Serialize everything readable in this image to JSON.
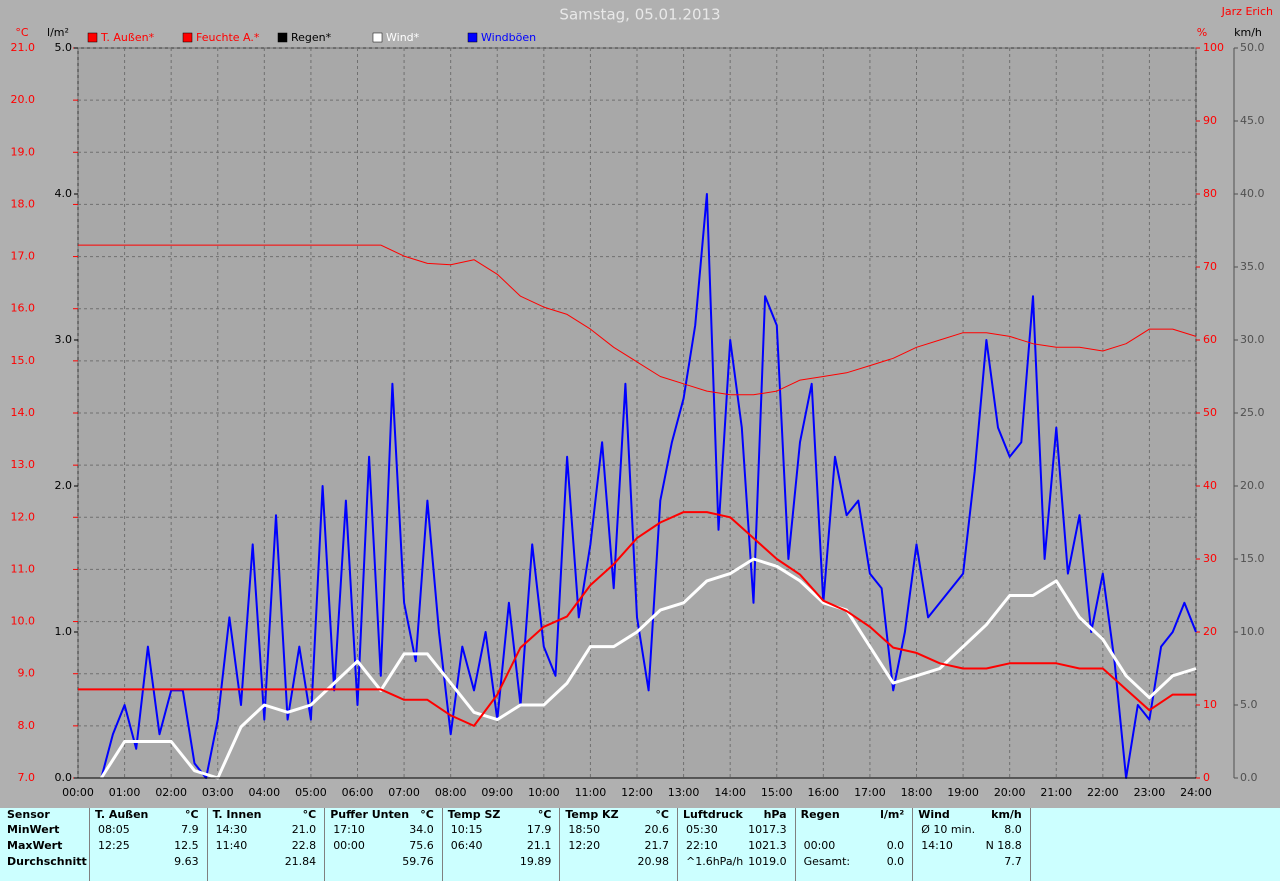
{
  "chart_data": {
    "type": "line",
    "title": "Samstag, 05.01.2013",
    "author": "Jarz Erich",
    "x": [
      0,
      0.5,
      1,
      1.5,
      2,
      2.5,
      3,
      3.5,
      4,
      4.5,
      5,
      5.5,
      6,
      6.5,
      7,
      7.5,
      8,
      8.5,
      9,
      9.5,
      10,
      10.5,
      11,
      11.5,
      12,
      12.5,
      13,
      13.5,
      14,
      14.5,
      15,
      15.5,
      16,
      16.5,
      17,
      17.5,
      18,
      18.5,
      19,
      19.5,
      20,
      20.5,
      21,
      21.5,
      22,
      22.5,
      23,
      23.5,
      24
    ],
    "xlim": [
      0,
      24
    ],
    "xticks": [
      {
        "value": 0,
        "label": "00:00"
      },
      {
        "value": 1,
        "label": "01:00"
      },
      {
        "value": 2,
        "label": "02:00"
      },
      {
        "value": 3,
        "label": "03:00"
      },
      {
        "value": 4,
        "label": "04:00"
      },
      {
        "value": 5,
        "label": "05:00"
      },
      {
        "value": 6,
        "label": "06:00"
      },
      {
        "value": 7,
        "label": "07:00"
      },
      {
        "value": 8,
        "label": "08:00"
      },
      {
        "value": 9,
        "label": "09:00"
      },
      {
        "value": 10,
        "label": "10:00"
      },
      {
        "value": 11,
        "label": "11:00"
      },
      {
        "value": 12,
        "label": "12:00"
      },
      {
        "value": 13,
        "label": "13:00"
      },
      {
        "value": 14,
        "label": "14:00"
      },
      {
        "value": 15,
        "label": "15:00"
      },
      {
        "value": 16,
        "label": "16:00"
      },
      {
        "value": 17,
        "label": "17:00"
      },
      {
        "value": 18,
        "label": "18:00"
      },
      {
        "value": 19,
        "label": "19:00"
      },
      {
        "value": 20,
        "label": "20:00"
      },
      {
        "value": 21,
        "label": "21:00"
      },
      {
        "value": 22,
        "label": "22:00"
      },
      {
        "value": 23,
        "label": "23:00"
      },
      {
        "value": 24,
        "label": "24:00"
      }
    ],
    "ylabel": "°C",
    "ylim": [
      7,
      21
    ],
    "yticks": [
      {
        "value": 7,
        "label": "7.0"
      },
      {
        "value": 8,
        "label": "8.0"
      },
      {
        "value": 9,
        "label": "9.0"
      },
      {
        "value": 10,
        "label": "10.0"
      },
      {
        "value": 11,
        "label": "11.0"
      },
      {
        "value": 12,
        "label": "12.0"
      },
      {
        "value": 13,
        "label": "13.0"
      },
      {
        "value": 14,
        "label": "14.0"
      },
      {
        "value": 15,
        "label": "15.0"
      },
      {
        "value": 16,
        "label": "16.0"
      },
      {
        "value": 17,
        "label": "17.0"
      },
      {
        "value": 18,
        "label": "18.0"
      },
      {
        "value": 19,
        "label": "19.0"
      },
      {
        "value": 20,
        "label": "20.0"
      },
      {
        "value": 21,
        "label": "21.0"
      }
    ],
    "y4label": "l/m²",
    "y4lim": [
      0,
      5
    ],
    "y4ticks": [
      {
        "value": 0,
        "label": "0.0"
      },
      {
        "value": 1,
        "label": "1.0"
      },
      {
        "value": 2,
        "label": "2.0"
      },
      {
        "value": 3,
        "label": "3.0"
      },
      {
        "value": 4,
        "label": "4.0"
      },
      {
        "value": 5,
        "label": "5.0"
      }
    ],
    "y2label": "%",
    "y2lim": [
      0,
      100
    ],
    "y2ticks": [
      0,
      10,
      20,
      30,
      40,
      50,
      60,
      70,
      80,
      90,
      100
    ],
    "y3label": "km/h",
    "y3lim": [
      0,
      50
    ],
    "y3ticks": [
      {
        "value": 0,
        "label": "0.0"
      },
      {
        "value": 5,
        "label": "5.0"
      },
      {
        "value": 10,
        "label": "10.0"
      },
      {
        "value": 15,
        "label": "15.0"
      },
      {
        "value": 20,
        "label": "20.0"
      },
      {
        "value": 25,
        "label": "25.0"
      },
      {
        "value": 30,
        "label": "30.0"
      },
      {
        "value": 35,
        "label": "35.0"
      },
      {
        "value": 40,
        "label": "40.0"
      },
      {
        "value": 45,
        "label": "45.0"
      },
      {
        "value": 50,
        "label": "50.0"
      }
    ],
    "grid": true,
    "series": [
      {
        "name": "T. Außen*",
        "color": "#ff0000",
        "axis": "y",
        "width": 2,
        "values": [
          8.7,
          8.7,
          8.7,
          8.7,
          8.7,
          8.7,
          8.7,
          8.7,
          8.7,
          8.7,
          8.7,
          8.7,
          8.7,
          8.7,
          8.5,
          8.5,
          8.2,
          8.0,
          8.6,
          9.5,
          9.9,
          10.1,
          10.7,
          11.1,
          11.6,
          11.9,
          12.1,
          12.1,
          12.0,
          11.6,
          11.2,
          10.9,
          10.4,
          10.2,
          9.9,
          9.5,
          9.4,
          9.2,
          9.1,
          9.1,
          9.2,
          9.2,
          9.2,
          9.1,
          9.1,
          8.7,
          8.3,
          8.6,
          8.6
        ]
      },
      {
        "name": "Feuchte A.*",
        "color": "#ff0000",
        "axis": "y2",
        "width": 1,
        "values": [
          73,
          73,
          73,
          73,
          73,
          73,
          73,
          73,
          73,
          73,
          73,
          73,
          73,
          73,
          71.5,
          70.5,
          70.3,
          71,
          69,
          66,
          64.5,
          63.5,
          61.5,
          59,
          57,
          55,
          54,
          53,
          52.5,
          52.5,
          53,
          54.5,
          55,
          55.5,
          56.5,
          57.5,
          59,
          60,
          61,
          61,
          60.5,
          59.5,
          59,
          59,
          58.5,
          59.5,
          61.5,
          61.5,
          60.5
        ]
      },
      {
        "name": "Regen*",
        "color": "#000000",
        "axis": "y4",
        "width": 1,
        "values": [
          0,
          0,
          0,
          0,
          0,
          0,
          0,
          0,
          0,
          0,
          0,
          0,
          0,
          0,
          0,
          0,
          0,
          0,
          0,
          0,
          0,
          0,
          0,
          0,
          0,
          0,
          0,
          0,
          0,
          0,
          0,
          0,
          0,
          0,
          0,
          0,
          0,
          0,
          0,
          0,
          0,
          0,
          0,
          0,
          0,
          0,
          0,
          0,
          0
        ]
      },
      {
        "name": "Wind*",
        "color": "#ffffff",
        "axis": "y3",
        "width": 3,
        "values": [
          null,
          0,
          2.5,
          2.5,
          2.5,
          0.5,
          0,
          3.5,
          5,
          4.5,
          5,
          6.5,
          8,
          6,
          8.5,
          8.5,
          6.5,
          4.5,
          4,
          5,
          5,
          6.5,
          9,
          9,
          10,
          11.5,
          12,
          13.5,
          14,
          15,
          14.5,
          13.5,
          12,
          11.5,
          9,
          6.5,
          7,
          7.5,
          9,
          10.5,
          12.5,
          12.5,
          13.5,
          11,
          9.5,
          7,
          5.5,
          7,
          7.5
        ]
      },
      {
        "name": "Windböen",
        "color": "#0000ff",
        "axis": "y3",
        "width": 2,
        "x": [
          0,
          0.25,
          0.5,
          0.75,
          1,
          1.25,
          1.5,
          1.75,
          2,
          2.25,
          2.5,
          2.75,
          3,
          3.25,
          3.5,
          3.75,
          4,
          4.25,
          4.5,
          4.75,
          5,
          5.25,
          5.5,
          5.75,
          6,
          6.25,
          6.5,
          6.75,
          7,
          7.25,
          7.5,
          7.75,
          8,
          8.25,
          8.5,
          8.75,
          9,
          9.25,
          9.5,
          9.75,
          10,
          10.25,
          10.5,
          10.75,
          11,
          11.25,
          11.5,
          11.75,
          12,
          12.25,
          12.5,
          12.75,
          13,
          13.25,
          13.5,
          13.75,
          14,
          14.25,
          14.5,
          14.75,
          15,
          15.25,
          15.5,
          15.75,
          16,
          16.25,
          16.5,
          16.75,
          17,
          17.25,
          17.5,
          17.75,
          18,
          18.25,
          18.5,
          18.75,
          19,
          19.25,
          19.5,
          19.75,
          20,
          20.25,
          20.5,
          20.75,
          21,
          21.25,
          21.5,
          21.75,
          22,
          22.25,
          22.5,
          22.75,
          23,
          23.25,
          23.5,
          23.75,
          24
        ],
        "values": [
          null,
          null,
          0,
          3,
          5,
          2,
          9,
          3,
          6,
          6,
          1,
          0,
          4,
          11,
          5,
          16,
          4,
          18,
          4,
          9,
          4,
          20,
          6,
          19,
          5,
          22,
          7,
          27,
          12,
          8,
          19,
          10,
          3,
          9,
          6,
          10,
          4,
          12,
          5,
          16,
          9,
          7,
          22,
          11,
          16,
          23,
          13,
          27,
          11,
          6,
          19,
          23,
          26,
          31,
          40,
          17,
          30,
          24,
          12,
          33,
          31,
          15,
          23,
          27,
          12,
          22,
          18,
          19,
          14,
          13,
          6,
          10,
          16,
          11,
          12,
          13,
          14,
          21,
          30,
          24,
          22,
          23,
          33,
          15,
          24,
          14,
          18,
          10,
          14,
          8,
          0,
          5,
          4,
          9,
          10,
          12,
          10
        ]
      }
    ]
  },
  "table": {
    "header": "Sensor",
    "columns": [
      {
        "name": "T. Außen",
        "unit": "°C"
      },
      {
        "name": "T. Innen",
        "unit": "°C"
      },
      {
        "name": "Puffer Unten",
        "unit": "°C"
      },
      {
        "name": "Temp SZ",
        "unit": "°C"
      },
      {
        "name": "Temp KZ",
        "unit": "°C"
      },
      {
        "name": "Luftdruck",
        "unit": "hPa"
      },
      {
        "name": "Regen",
        "unit": "l/m²"
      },
      {
        "name": "Wind",
        "unit": "km/h"
      }
    ],
    "row_labels": [
      "MinWert",
      "MaxWert",
      "Durchschnitt"
    ],
    "rows": [
      [
        [
          "08:05",
          "7.9"
        ],
        [
          "14:30",
          "21.0"
        ],
        [
          "17:10",
          "34.0"
        ],
        [
          "10:15",
          "17.9"
        ],
        [
          "18:50",
          "20.6"
        ],
        [
          "05:30",
          "1017.3"
        ],
        [
          null,
          null
        ],
        [
          "Ø 10 min.",
          "8.0"
        ]
      ],
      [
        [
          "12:25",
          "12.5"
        ],
        [
          "11:40",
          "22.8"
        ],
        [
          "00:00",
          "75.6"
        ],
        [
          "06:40",
          "21.1"
        ],
        [
          "12:20",
          "21.7"
        ],
        [
          "22:10",
          "1021.3"
        ],
        [
          "00:00",
          "0.0"
        ],
        [
          "14:10",
          "N 18.8"
        ]
      ],
      [
        [
          null,
          "9.63"
        ],
        [
          null,
          "21.84"
        ],
        [
          null,
          "59.76"
        ],
        [
          null,
          "19.89"
        ],
        [
          null,
          "20.98"
        ],
        [
          "^1.6hPa/h",
          "1019.0"
        ],
        [
          "Gesamt:",
          "0.0"
        ],
        [
          null,
          "7.7"
        ]
      ]
    ]
  }
}
